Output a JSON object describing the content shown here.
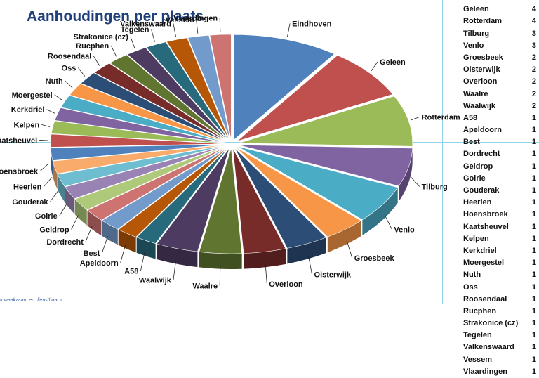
{
  "title": "Aanhoudingen per plaats",
  "footer": "« waakzaam en dienstbaar »",
  "chart_data": {
    "type": "pie",
    "title": "Aanhoudingen per plaats",
    "legend": "right",
    "categories": [
      "Eindhoven",
      "Geleen",
      "Rotterdam",
      "Tilburg",
      "Venlo",
      "Groesbeek",
      "Oisterwijk",
      "Overloon",
      "Waalre",
      "Waalwijk",
      "A58",
      "Apeldoorn",
      "Best",
      "Dordrecht",
      "Geldrop",
      "Goirle",
      "Gouderak",
      "Heerlen",
      "Hoensbroek",
      "Kaatsheuvel",
      "Kelpen",
      "Kerkdriel",
      "Moergestel",
      "Nuth",
      "Oss",
      "Roosendaal",
      "Rucphen",
      "Strakonice (cz)",
      "Tegelen",
      "Valkenswaard",
      "Vessem",
      "Vlaardingen"
    ],
    "values": [
      5,
      4,
      4,
      3,
      3,
      2,
      2,
      2,
      2,
      2,
      1,
      1,
      1,
      1,
      1,
      1,
      1,
      1,
      1,
      1,
      1,
      1,
      1,
      1,
      1,
      1,
      1,
      1,
      1,
      1,
      1,
      1
    ],
    "colors": [
      "#4f81bd",
      "#c0504d",
      "#9bbb59",
      "#8064a2",
      "#4bacc6",
      "#f79646",
      "#2c4d75",
      "#772c2a",
      "#5f7530",
      "#4d3b62",
      "#276a7c",
      "#b65708",
      "#729aca",
      "#cd7371",
      "#afc97a",
      "#9983b5",
      "#6fbdd1",
      "#f9ab6b",
      "#4f81bd",
      "#c0504d",
      "#9bbb59",
      "#8064a2",
      "#4bacc6",
      "#f79646",
      "#2c4d75",
      "#772c2a",
      "#5f7530",
      "#4d3b62",
      "#276a7c",
      "#b65708",
      "#729aca",
      "#cd7371"
    ]
  }
}
